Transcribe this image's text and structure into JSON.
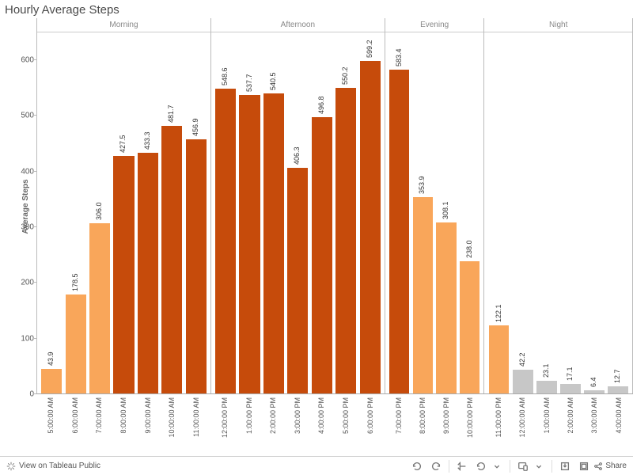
{
  "title": "Hourly Average Steps",
  "chart": {
    "type": "bar",
    "ylabel": "Average Steps",
    "ylim": [
      0,
      650
    ],
    "ytick_step": 100,
    "yticks": [
      0,
      100,
      200,
      300,
      400,
      500,
      600
    ],
    "title_fontsize": 15,
    "label_fontsize": 10,
    "bar_label_fontsize": 9,
    "xtick_fontsize": 9,
    "background_color": "#ffffff",
    "grid_color": "#bbbbbb",
    "text_color": "#4a4a4a",
    "panel_border_color": "#bbbbbb",
    "bar_width": 0.86,
    "colors": {
      "dark_orange": "#c64b0b",
      "light_orange": "#f9a65a",
      "light_gray": "#c7c7c7"
    },
    "panels": [
      {
        "name": "Morning",
        "bars": [
          {
            "x": "5:00:00 AM",
            "value": 43.9,
            "color": "#f9a65a"
          },
          {
            "x": "6:00:00 AM",
            "value": 178.5,
            "color": "#f9a65a"
          },
          {
            "x": "7:00:00 AM",
            "value": 306.0,
            "color": "#f9a65a"
          },
          {
            "x": "8:00:00 AM",
            "value": 427.5,
            "color": "#c64b0b"
          },
          {
            "x": "9:00:00 AM",
            "value": 433.3,
            "color": "#c64b0b"
          },
          {
            "x": "10:00:00 AM",
            "value": 481.7,
            "color": "#c64b0b"
          },
          {
            "x": "11:00:00 AM",
            "value": 456.9,
            "color": "#c64b0b"
          }
        ]
      },
      {
        "name": "Afternoon",
        "bars": [
          {
            "x": "12:00:00 PM",
            "value": 548.6,
            "color": "#c64b0b"
          },
          {
            "x": "1:00:00 PM",
            "value": 537.7,
            "color": "#c64b0b"
          },
          {
            "x": "2:00:00 PM",
            "value": 540.5,
            "color": "#c64b0b"
          },
          {
            "x": "3:00:00 PM",
            "value": 406.3,
            "color": "#c64b0b"
          },
          {
            "x": "4:00:00 PM",
            "value": 496.8,
            "color": "#c64b0b"
          },
          {
            "x": "5:00:00 PM",
            "value": 550.2,
            "color": "#c64b0b"
          },
          {
            "x": "6:00:00 PM",
            "value": 599.2,
            "color": "#c64b0b"
          }
        ]
      },
      {
        "name": "Evening",
        "bars": [
          {
            "x": "7:00:00 PM",
            "value": 583.4,
            "color": "#c64b0b"
          },
          {
            "x": "8:00:00 PM",
            "value": 353.9,
            "color": "#f9a65a"
          },
          {
            "x": "9:00:00 PM",
            "value": 308.1,
            "color": "#f9a65a"
          },
          {
            "x": "10:00:00 PM",
            "value": 238.0,
            "color": "#f9a65a"
          }
        ]
      },
      {
        "name": "Night",
        "bars": [
          {
            "x": "11:00:00 PM",
            "value": 122.1,
            "color": "#f9a65a"
          },
          {
            "x": "12:00:00 AM",
            "value": 42.2,
            "color": "#c7c7c7"
          },
          {
            "x": "1:00:00 AM",
            "value": 23.1,
            "color": "#c7c7c7"
          },
          {
            "x": "2:00:00 AM",
            "value": 17.1,
            "color": "#c7c7c7"
          },
          {
            "x": "3:00:00 AM",
            "value": 6.4,
            "color": "#c7c7c7"
          },
          {
            "x": "4:00:00 AM",
            "value": 12.7,
            "color": "#c7c7c7"
          }
        ]
      }
    ]
  },
  "toolbar": {
    "view_label": "View on Tableau Public",
    "share_label": "Share",
    "buttons": {
      "undo": "undo-icon",
      "redo": "redo-icon",
      "revert": "revert-icon",
      "refresh": "refresh-icon",
      "pause": "pause-icon",
      "present": "present-icon",
      "download": "download-icon",
      "share": "share-icon"
    }
  }
}
